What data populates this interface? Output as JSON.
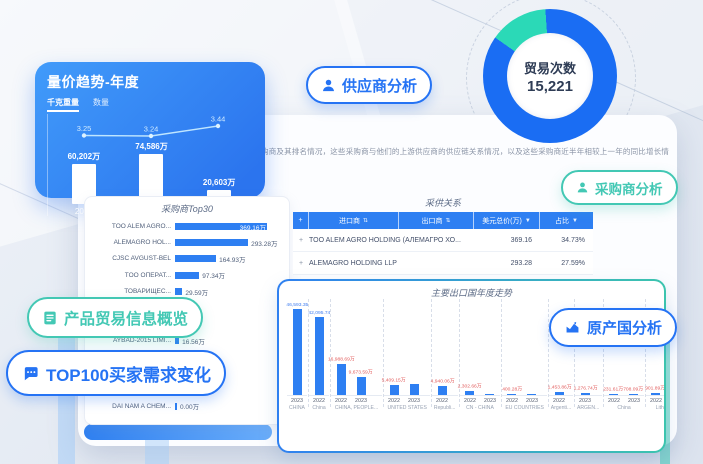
{
  "colors": {
    "accent_blue": "#2573f4",
    "accent_teal": "#43c8b4",
    "bar_blue": "#2e7ff2",
    "donut_blue": "#1a6df3",
    "donut_teal": "#2bd9b7",
    "label_red": "#e25d5d"
  },
  "description": "购商及其排名情况，这些采购商与他们的上游供应商的供应链关系情况，以及这些采购商近半年相较上一年的同比增长情",
  "price_volume_card": {
    "title": "量价趋势-年度",
    "tabs": [
      {
        "label": "千克重量",
        "active": true
      },
      {
        "label": "数量",
        "active": false
      }
    ]
  },
  "donut": {
    "center_label": "贸易次数",
    "center_value": "15,221"
  },
  "callouts": {
    "supplier": {
      "label": "供应商分析",
      "icon": "person-icon"
    },
    "buyer": {
      "label": "采购商分析",
      "icon": "person-icon"
    },
    "origin": {
      "label": "原产国分析",
      "icon": "area-chart-icon"
    },
    "overview": {
      "label": "产品贸易信息概览",
      "icon": "document-icon"
    },
    "top100": {
      "label": "TOP100买家需求变化",
      "icon": "chat-icon"
    }
  },
  "top30": {
    "title": "采购商Top30"
  },
  "relation": {
    "title": "采供关系",
    "headers": {
      "expand": "+",
      "importer": "进口商",
      "exporter": "出口商",
      "usd": "美元总价(万)",
      "share": "占比",
      "sort_icon": "⇅",
      "filter_icon": "▼"
    },
    "rows": [
      {
        "expand": "+",
        "importer": "TOO ALEM AGRO HOLDING (АЛЕМАГРО ХО...",
        "exporter": "",
        "usd": "369.16",
        "share": "34.73%"
      },
      {
        "expand": "+",
        "importer": "ALEMAGRO HOLDING LLP",
        "exporter": "",
        "usd": "293.28",
        "share": "27.59%"
      }
    ]
  },
  "export_trend": {
    "title": "主要出口国年度走势"
  },
  "chart_data": [
    {
      "id": "price_volume",
      "type": "bar",
      "title": "量价趋势-年度",
      "categories": [
        "2021",
        "2022",
        "2023"
      ],
      "series": [
        {
          "name": "千克重量",
          "values": [
            60202,
            74586,
            20603
          ],
          "labels": [
            "60,202万",
            "74,586万",
            "20,603万"
          ]
        },
        {
          "name": "趋势线",
          "values": [
            3.25,
            3.24,
            3.44
          ],
          "labels": [
            "3.25",
            "3.24",
            "3.44"
          ]
        }
      ],
      "ylim": [
        0,
        80000
      ],
      "legend_position": "none"
    },
    {
      "id": "trade_count",
      "type": "pie",
      "title": "贸易次数",
      "center_value": "15,221",
      "slices": [
        {
          "name": "main",
          "from_deg": 0,
          "to_deg": 305,
          "color": "#1a6df3"
        },
        {
          "name": "secondary",
          "from_deg": 305,
          "to_deg": 356,
          "color": "#2bd9b7"
        },
        {
          "name": "main2",
          "from_deg": 356,
          "to_deg": 360,
          "color": "#1a6df3"
        }
      ]
    },
    {
      "id": "top30",
      "type": "bar-horizontal",
      "title": "采购商Top30",
      "max": 369.16,
      "rows": [
        {
          "name": "TOO ALEM AGRO...",
          "value": 369.16,
          "label": "369.16万",
          "label_inside": true
        },
        {
          "name": "ALEMAGRO HOL...",
          "value": 293.28,
          "label": "293.28万"
        },
        {
          "name": "CJSC AVGUST-BEL",
          "value": 164.93,
          "label": "164.93万"
        },
        {
          "name": "TOO ОПЕРАТ...",
          "value": 97.34,
          "label": "97.34万"
        },
        {
          "name": "ТОВАРИЩЕС...",
          "value": 29.59,
          "label": "29.59万"
        },
        {
          "name": "",
          "value": 0,
          "label": ""
        },
        {
          "name": "",
          "value": 0,
          "label": ""
        },
        {
          "name": "AYBAD-2015 LIMI...",
          "value": 16.56,
          "label": "16.56万"
        },
        {
          "name": "AGRO GLOBAL L...",
          "value": 16.3,
          "label": "16.30万"
        },
        {
          "name": "",
          "value": 0,
          "label": ""
        },
        {
          "name": "",
          "value": 0,
          "label": ""
        },
        {
          "name": "DAI NAM A CHEM...",
          "value": 0,
          "label": "0.00万"
        }
      ]
    },
    {
      "id": "export_trend",
      "type": "bar",
      "title": "主要出口国年度走势",
      "max": 46593.35,
      "groups": [
        {
          "country": "CHINA",
          "bars": [
            {
              "year": "2023",
              "value": 46593.35,
              "label": "46,593.35",
              "label_color": "blue"
            }
          ]
        },
        {
          "country": "China",
          "bars": [
            {
              "year": "2022",
              "value": 42095.74,
              "label": "42,095.74",
              "label_color": "blue"
            }
          ]
        },
        {
          "country": "CHINA, PEOPLE...",
          "bars": [
            {
              "year": "2022",
              "value": 16988.69,
              "label": "16,988.69万",
              "label_color": "red"
            },
            {
              "year": "2023",
              "value": 9673.59,
              "label": "9,673.59万",
              "label_color": "red"
            }
          ]
        },
        {
          "country": "UNITED STATES",
          "bars": [
            {
              "year": "2022",
              "value": 5409.15,
              "label": "5,409.15万",
              "label_color": "red"
            },
            {
              "year": "2023",
              "value": 6100,
              "label": "",
              "label_color": "red"
            }
          ]
        },
        {
          "country": "Republi...",
          "bars": [
            {
              "year": "2022",
              "value": 4940.06,
              "label": "4,940.06万",
              "label_color": "red"
            }
          ]
        },
        {
          "country": "CN - CHINA",
          "bars": [
            {
              "year": "2022",
              "value": 2302.66,
              "label": "2,302.66万",
              "label_color": "red"
            },
            {
              "year": "2023",
              "value": 260,
              "label": "",
              "label_color": "red"
            }
          ]
        },
        {
          "country": "EU COUNTRIES",
          "bars": [
            {
              "year": "2022",
              "value": 400.28,
              "label": "400.28万",
              "label_color": "red"
            },
            {
              "year": "2023",
              "value": 160,
              "label": "",
              "label_color": "red"
            }
          ]
        },
        {
          "country": "Argenti...",
          "bars": [
            {
              "year": "2022",
              "value": 1453.86,
              "label": "1,453.86万",
              "label_color": "red"
            }
          ]
        },
        {
          "country": "ARGEN...",
          "bars": [
            {
              "year": "2023",
              "value": 1276.74,
              "label": "1,276.74万",
              "label_color": "red"
            }
          ]
        },
        {
          "country": "China",
          "bars": [
            {
              "year": "2022",
              "value": 231.61,
              "label": "231.61万",
              "label_color": "red"
            },
            {
              "year": "2023",
              "value": 708.09,
              "label": "708.09万",
              "label_color": "red"
            }
          ]
        },
        {
          "country": "Lithuania",
          "bars": [
            {
              "year": "2022",
              "value": 901.89,
              "label": "901.89万",
              "label_color": "red"
            },
            {
              "year": "2023",
              "value": 0.07,
              "label": "0.07万",
              "label_color": "red"
            }
          ]
        }
      ]
    }
  ]
}
